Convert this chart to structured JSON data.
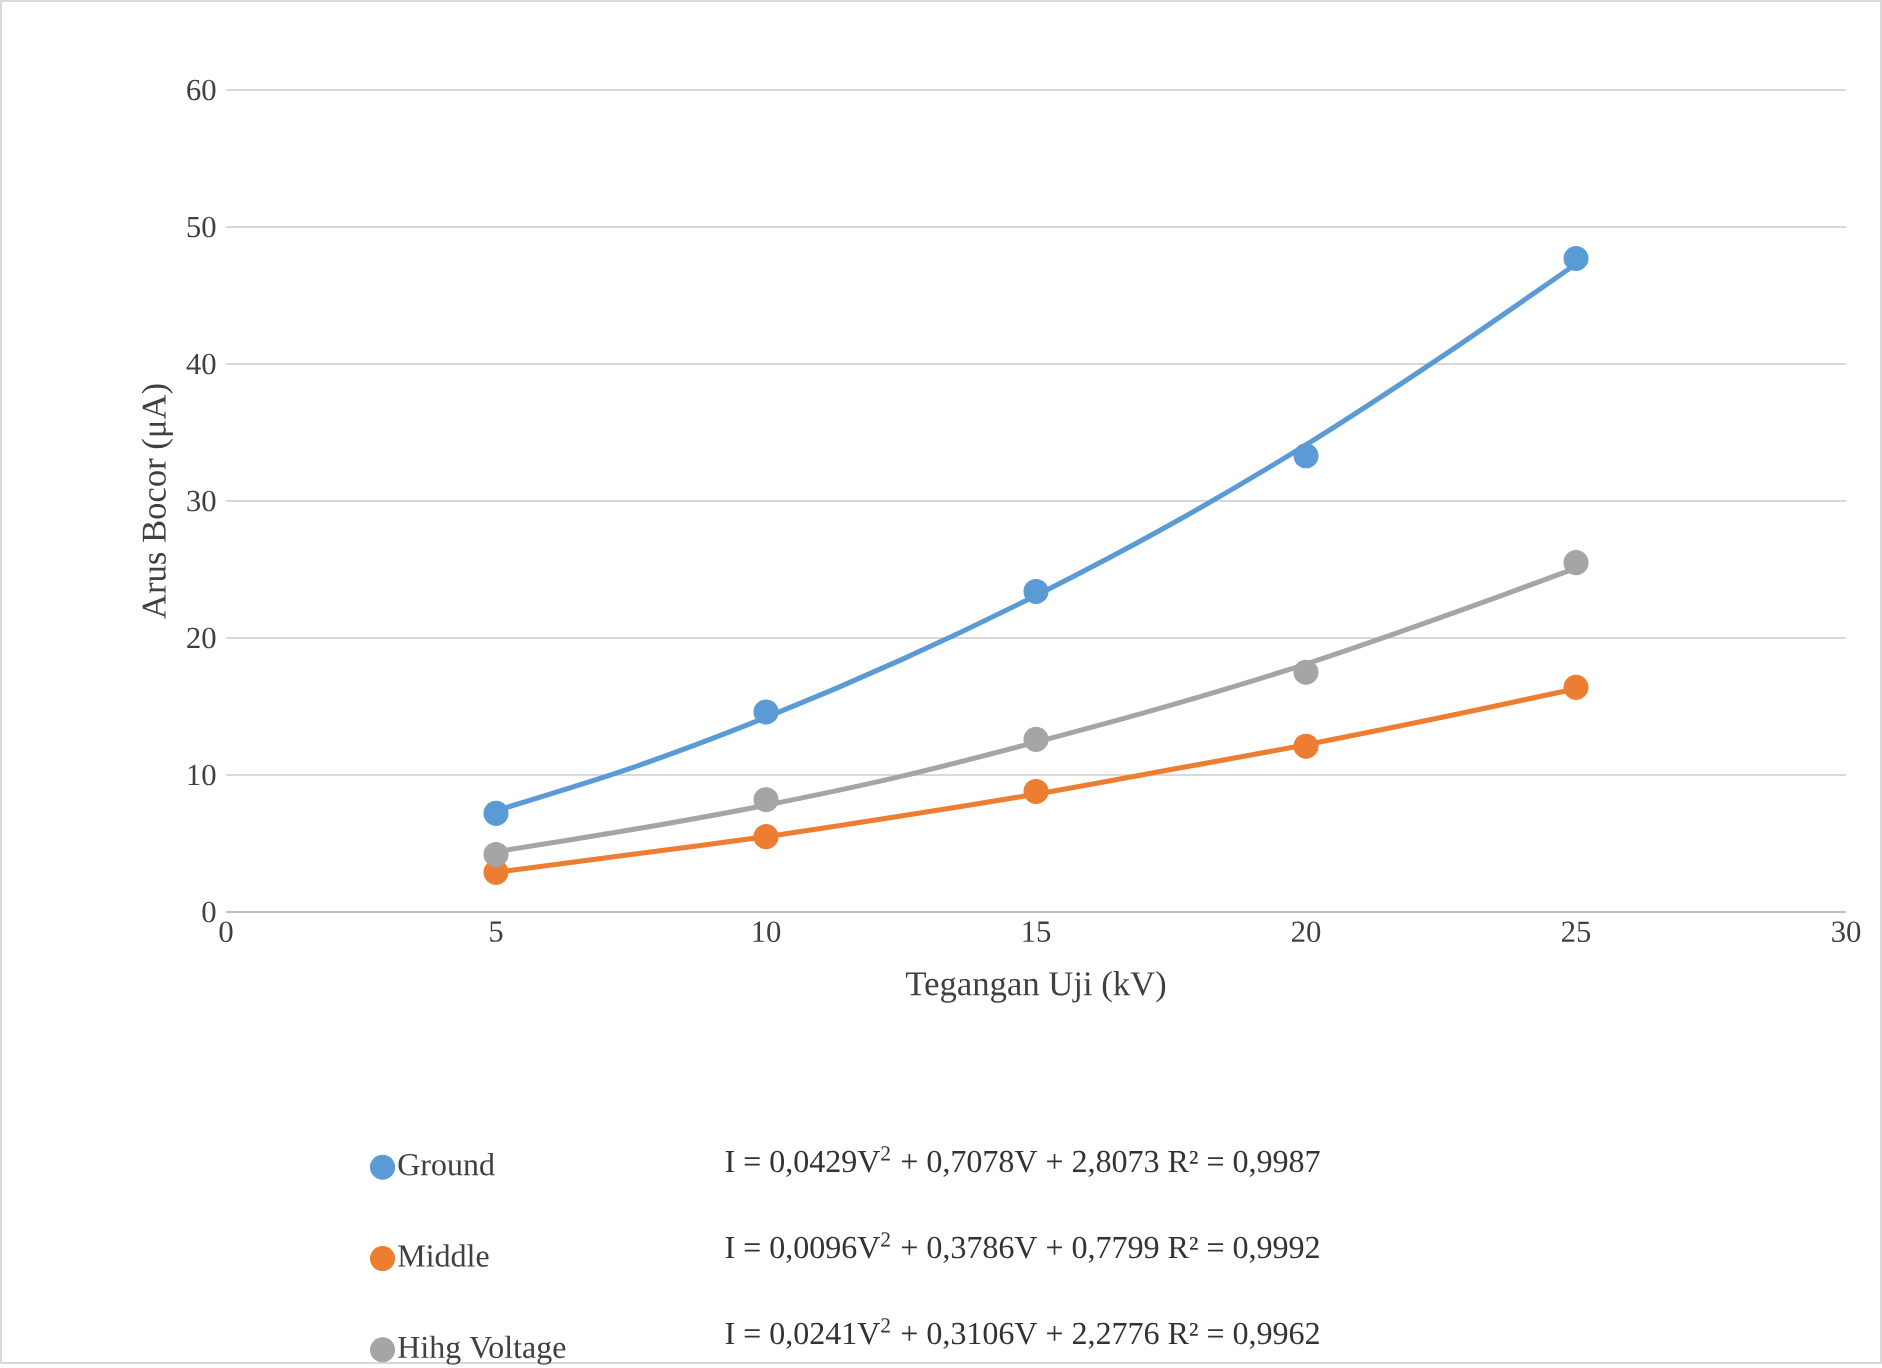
{
  "chart_data": {
    "type": "scatter",
    "xlabel": "Tegangan Uji (kV)",
    "ylabel": "Arus Bocor (μA)",
    "xlim": [
      0,
      30
    ],
    "xticks": [
      0,
      5,
      10,
      15,
      20,
      25,
      30
    ],
    "ylim": [
      0,
      60
    ],
    "yticks": [
      0,
      10,
      20,
      30,
      40,
      50,
      60
    ],
    "grid": "y",
    "legend": "bottom",
    "marker": "circle",
    "x": [
      5,
      10,
      15,
      20,
      25
    ],
    "series": [
      {
        "name": "Ground",
        "color": "#5b9bd5",
        "values": [
          7.2,
          14.6,
          23.4,
          33.3,
          47.7
        ]
      },
      {
        "name": "Middle",
        "color": "#ed7d31",
        "values": [
          2.9,
          5.5,
          8.8,
          12.1,
          16.4
        ]
      },
      {
        "name": "Hihg Voltage",
        "color": "#a5a5a5",
        "values": [
          4.2,
          8.2,
          12.6,
          17.5,
          25.5
        ]
      },
      {
        "type": "line",
        "marker": "none",
        "color": "#5b9bd5",
        "x": [
          5,
          7.5,
          10,
          12.5,
          15,
          17.5,
          20,
          22.5,
          25
        ],
        "values": [
          7.4,
          10.5,
          14.2,
          18.4,
          23.1,
          28.3,
          34.1,
          40.5,
          47.3
        ]
      },
      {
        "type": "line",
        "marker": "none",
        "color": "#ed7d31",
        "x": [
          5,
          7.5,
          10,
          12.5,
          15,
          17.5,
          20,
          22.5,
          25
        ],
        "values": [
          2.9,
          4.2,
          5.5,
          7.0,
          8.6,
          10.4,
          12.2,
          14.2,
          16.3
        ]
      },
      {
        "type": "line",
        "marker": "none",
        "color": "#a5a5a5",
        "x": [
          5,
          7.5,
          10,
          12.5,
          15,
          17.5,
          20,
          22.5,
          25
        ],
        "values": [
          4.4,
          6.0,
          7.8,
          9.9,
          12.4,
          15.1,
          18.1,
          21.5,
          25.1
        ]
      }
    ],
    "annotations": [
      "I = 0,0429V$^{2}$ + 0,7078V + 2,8073   R² = 0,9987",
      "I = 0,0096V$^{2}$ + 0,3786V + 0,7799   R² = 0,9992",
      "I = 0,0241V$^{2}$ + 0,3106V + 2,2776   R² = 0,9962"
    ]
  }
}
